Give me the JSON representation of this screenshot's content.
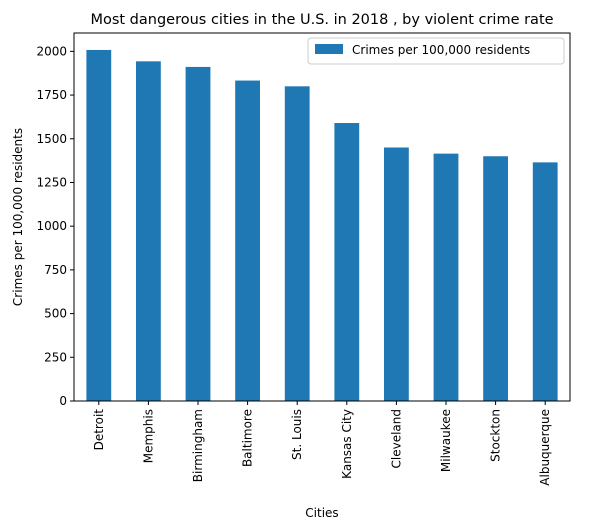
{
  "chart_data": {
    "type": "bar",
    "title": "Most dangerous cities in the U.S. in 2018 , by violent crime rate",
    "xlabel": "Cities",
    "ylabel": "Crimes per 100,000 residents",
    "categories": [
      "Detroit",
      "Memphis",
      "Birmingham",
      "Baltimore",
      "St. Louis",
      "Kansas City",
      "Cleveland",
      "Milwaukee",
      "Stockton",
      "Albuquerque"
    ],
    "series": [
      {
        "name": "Crimes per 100,000 residents",
        "color": "#1f77b4",
        "values": [
          2008,
          1943,
          1911,
          1833,
          1800,
          1590,
          1450,
          1415,
          1400,
          1365
        ]
      }
    ],
    "ylim": [
      0,
      2105
    ],
    "yticks": [
      0,
      250,
      500,
      750,
      1000,
      1250,
      1500,
      1750,
      2000
    ],
    "grid": false,
    "legend_position": "top-right"
  }
}
